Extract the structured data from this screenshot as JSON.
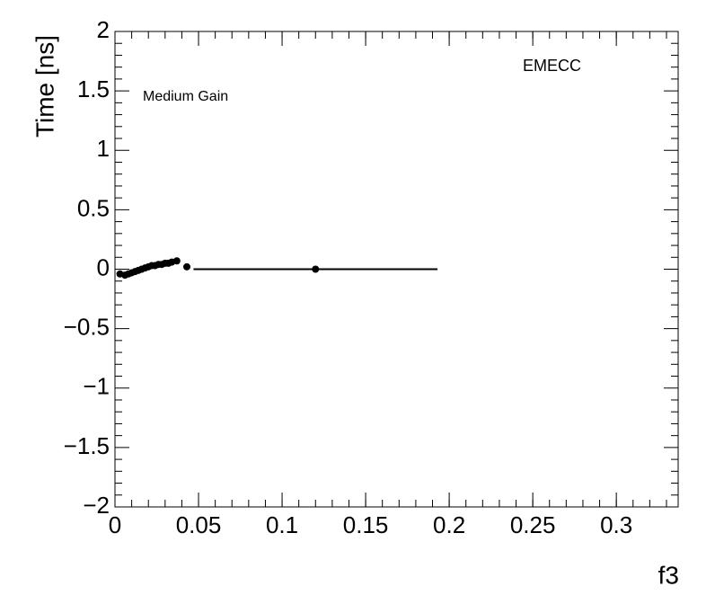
{
  "chart_data": {
    "type": "scatter",
    "y_label": "Time [ns]",
    "x_label": "f3",
    "annotations": [
      "EMECC",
      "Medium Gain"
    ],
    "x": [
      0.003,
      0.006,
      0.008,
      0.01,
      0.012,
      0.014,
      0.016,
      0.018,
      0.02,
      0.022,
      0.024,
      0.026,
      0.028,
      0.03,
      0.032,
      0.034,
      0.037,
      0.043,
      0.12
    ],
    "y": [
      -0.04,
      -0.05,
      -0.04,
      -0.03,
      -0.02,
      -0.01,
      0.0,
      0.01,
      0.02,
      0.03,
      0.03,
      0.04,
      0.04,
      0.05,
      0.05,
      0.06,
      0.07,
      0.02,
      0.0
    ],
    "xerr": [
      0.001,
      0.001,
      0.001,
      0.001,
      0.001,
      0.001,
      0.001,
      0.001,
      0.001,
      0.001,
      0.001,
      0.001,
      0.001,
      0.001,
      0.001,
      0.001,
      0.001,
      0.001,
      0.073
    ],
    "color": "#000000",
    "xlim": [
      0,
      0.337
    ],
    "ylim": [
      -2,
      2
    ],
    "xticks": [
      0,
      0.05,
      0.1,
      0.15,
      0.2,
      0.25,
      0.3
    ],
    "yticks": [
      {
        "value": -2,
        "label": "−2"
      },
      {
        "value": -1.5,
        "label": "−1.5"
      },
      {
        "value": -1,
        "label": "−1"
      },
      {
        "value": -0.5,
        "label": "−0.5"
      },
      0,
      0.5,
      1,
      1.5,
      2
    ]
  }
}
